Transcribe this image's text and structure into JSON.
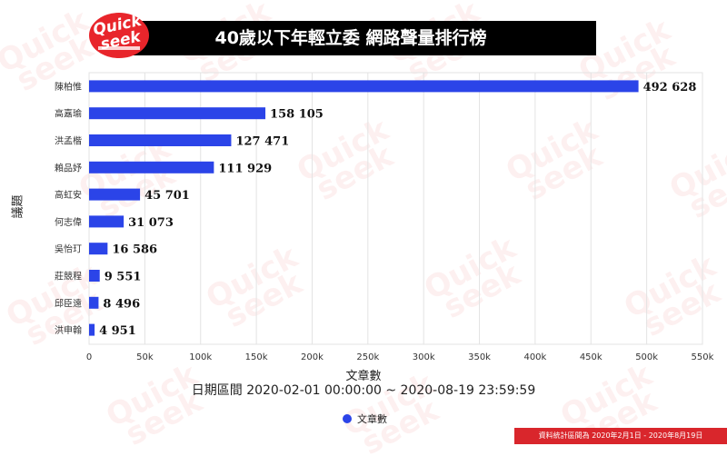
{
  "header": {
    "title": "40歲以下年輕立委 網路聲量排行榜"
  },
  "logo": {
    "text": "Quick seek"
  },
  "footer": {
    "note": "資料統計區間為 2020年2月1日 - 2020年8月19日"
  },
  "colors": {
    "bar": "#2b44e8",
    "header_bg": "#000000",
    "accent": "#d9262c"
  },
  "chart_data": {
    "type": "bar",
    "orientation": "horizontal",
    "title": "40歲以下年輕立委 網路聲量排行榜",
    "subtitle": "日期區間 2020-02-01 00:00:00 ~ 2020-08-19 23:59:59",
    "xlabel": "文章數",
    "ylabel": "議題",
    "categories": [
      "陳柏惟",
      "高嘉瑜",
      "洪孟楷",
      "賴品妤",
      "高虹安",
      "何志偉",
      "吳怡玎",
      "莊競程",
      "邱臣遠",
      "洪申翰"
    ],
    "values": [
      492628,
      158105,
      127471,
      111929,
      45701,
      31073,
      16586,
      9551,
      8496,
      4951
    ],
    "value_labels": [
      "492 628",
      "158 105",
      "127 471",
      "111 929",
      "45 701",
      "31 073",
      "16 586",
      "9 551",
      "8 496",
      "4 951"
    ],
    "xlim": [
      0,
      550000
    ],
    "ticks": [
      0,
      50000,
      100000,
      150000,
      200000,
      250000,
      300000,
      350000,
      400000,
      450000,
      500000,
      550000
    ],
    "tick_labels": [
      "0",
      "50k",
      "100k",
      "150k",
      "200k",
      "250k",
      "300k",
      "350k",
      "400k",
      "450k",
      "500k",
      "550k"
    ],
    "legend": [
      "文章數"
    ],
    "legend_position": "bottom",
    "grid": true
  }
}
